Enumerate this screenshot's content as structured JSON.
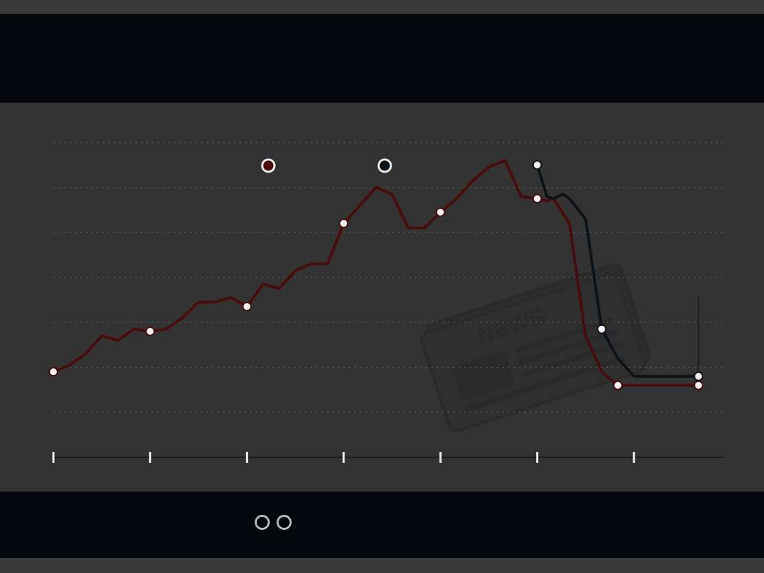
{
  "header": {
    "title": "",
    "subtitle": ""
  },
  "footer": {
    "brand": "",
    "brand_sub": "",
    "source": ""
  },
  "watermark": {
    "icon": "newspaper-icon",
    "text": "NEWS"
  },
  "colors": {
    "background": "#333333",
    "header_bg": "#05080c",
    "text": "#f2f2f2",
    "series_1": "#4a0b0b",
    "series_2": "#0b1218",
    "grid": "#5a5a5a"
  },
  "chart_data": {
    "type": "line",
    "title": "",
    "xlabel": "",
    "ylabel": "",
    "ylim": [
      0,
      7
    ],
    "xlim": [
      2004,
      2024.8
    ],
    "yticks": [
      {
        "value": 0,
        "label": ""
      },
      {
        "value": 1,
        "label": ""
      },
      {
        "value": 2,
        "label": ""
      },
      {
        "value": 3,
        "label": ""
      },
      {
        "value": 4,
        "label": ""
      },
      {
        "value": 5,
        "label": ""
      },
      {
        "value": 6,
        "label": ""
      },
      {
        "value": 7,
        "label": ""
      }
    ],
    "xticks": [
      {
        "value": 2004,
        "label": ""
      },
      {
        "value": 2007,
        "label": ""
      },
      {
        "value": 2010,
        "label": ""
      },
      {
        "value": 2013,
        "label": ""
      },
      {
        "value": 2016,
        "label": ""
      },
      {
        "value": 2019,
        "label": ""
      },
      {
        "value": 2022,
        "label": ""
      }
    ],
    "grid": true,
    "legend_position": "top-center",
    "series": [
      {
        "name": "",
        "x": [
          2004,
          2004.5,
          2005,
          2005.5,
          2006,
          2006.5,
          2007,
          2007.5,
          2008,
          2008.5,
          2009,
          2009.5,
          2010,
          2010.5,
          2011,
          2011.5,
          2012,
          2012.5,
          2013,
          2013.5,
          2014,
          2014.5,
          2015,
          2015.5,
          2016,
          2016.5,
          2017,
          2017.5,
          2018,
          2018.5,
          2019,
          2019.3,
          2019.5,
          2020,
          2020.5,
          2021,
          2021.5,
          2022,
          2022.5,
          2023,
          2023.5,
          2024
        ],
        "values": [
          1.9,
          2.05,
          2.3,
          2.7,
          2.6,
          2.85,
          2.8,
          2.85,
          3.1,
          3.45,
          3.45,
          3.55,
          3.35,
          3.85,
          3.75,
          4.15,
          4.3,
          4.3,
          5.2,
          5.6,
          6.0,
          5.85,
          5.1,
          5.1,
          5.45,
          5.75,
          6.15,
          6.45,
          6.6,
          5.8,
          5.75,
          5.7,
          5.75,
          5.2,
          2.7,
          1.9,
          1.6,
          1.6,
          1.6,
          1.6,
          1.6,
          1.6
        ],
        "color": "#4a0b0b"
      },
      {
        "name": "",
        "x": [
          2019,
          2019.3,
          2019.5,
          2019.8,
          2020,
          2020.5,
          2021,
          2021.5,
          2022,
          2022.5,
          2023,
          2023.5,
          2024
        ],
        "values": [
          6.5,
          5.8,
          5.75,
          5.85,
          5.75,
          5.3,
          2.85,
          2.2,
          1.8,
          1.8,
          1.8,
          1.8,
          1.8
        ],
        "color": "#0b1218"
      }
    ],
    "data_labels": [
      {
        "series": 0,
        "x": 2024,
        "y": 1.9,
        "label": ""
      }
    ]
  }
}
